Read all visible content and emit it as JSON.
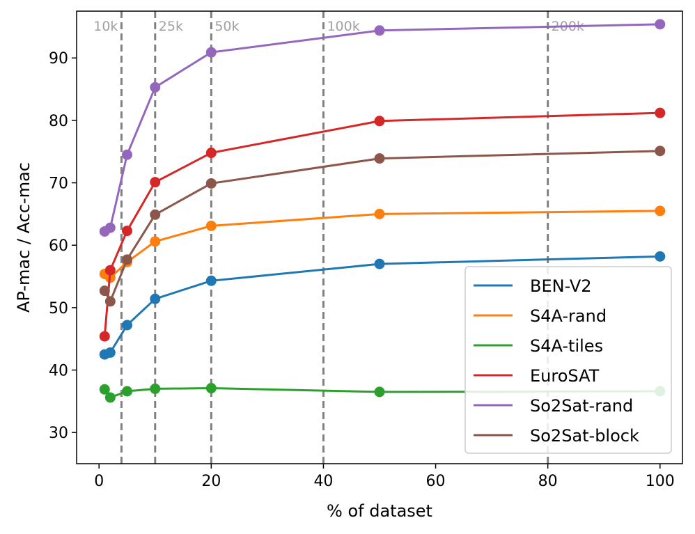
{
  "chart_data": {
    "type": "line",
    "title": "",
    "xlabel": "% of dataset",
    "ylabel": "AP-mac / Acc-mac",
    "xlim": [
      -4,
      104
    ],
    "ylim": [
      25,
      97.5
    ],
    "xticks": [
      0,
      20,
      40,
      60,
      80,
      100
    ],
    "yticks": [
      30,
      40,
      50,
      60,
      70,
      80,
      90
    ],
    "grid": false,
    "legend_position": "lower-right",
    "x": [
      1,
      2,
      5,
      10,
      20,
      50,
      100
    ],
    "reference_lines": [
      {
        "x": 4,
        "label": "10k"
      },
      {
        "x": 10,
        "label": "25k"
      },
      {
        "x": 20,
        "label": "50k"
      },
      {
        "x": 40,
        "label": "100k"
      },
      {
        "x": 80,
        "label": "200k"
      }
    ],
    "series": [
      {
        "name": "BEN-V2",
        "color": "#1f77b4",
        "values": [
          42.5,
          42.8,
          47.2,
          51.4,
          54.3,
          57.0,
          58.2
        ]
      },
      {
        "name": "S4A-rand",
        "color": "#ff7f0e",
        "values": [
          55.4,
          54.8,
          57.3,
          60.6,
          63.1,
          65.0,
          65.5
        ]
      },
      {
        "name": "S4A-tiles",
        "color": "#2ca02c",
        "values": [
          36.9,
          35.6,
          36.6,
          37.0,
          37.1,
          36.5,
          36.6
        ]
      },
      {
        "name": "EuroSAT",
        "color": "#d62728",
        "values": [
          45.4,
          56.0,
          62.3,
          70.1,
          74.8,
          79.9,
          81.2
        ]
      },
      {
        "name": "So2Sat-rand",
        "color": "#9467bd",
        "values": [
          62.2,
          62.8,
          74.5,
          85.3,
          90.9,
          94.4,
          95.4
        ]
      },
      {
        "name": "So2Sat-block",
        "color": "#8c564b",
        "values": [
          52.7,
          51.0,
          57.7,
          64.9,
          69.9,
          73.9,
          75.1
        ]
      }
    ]
  }
}
